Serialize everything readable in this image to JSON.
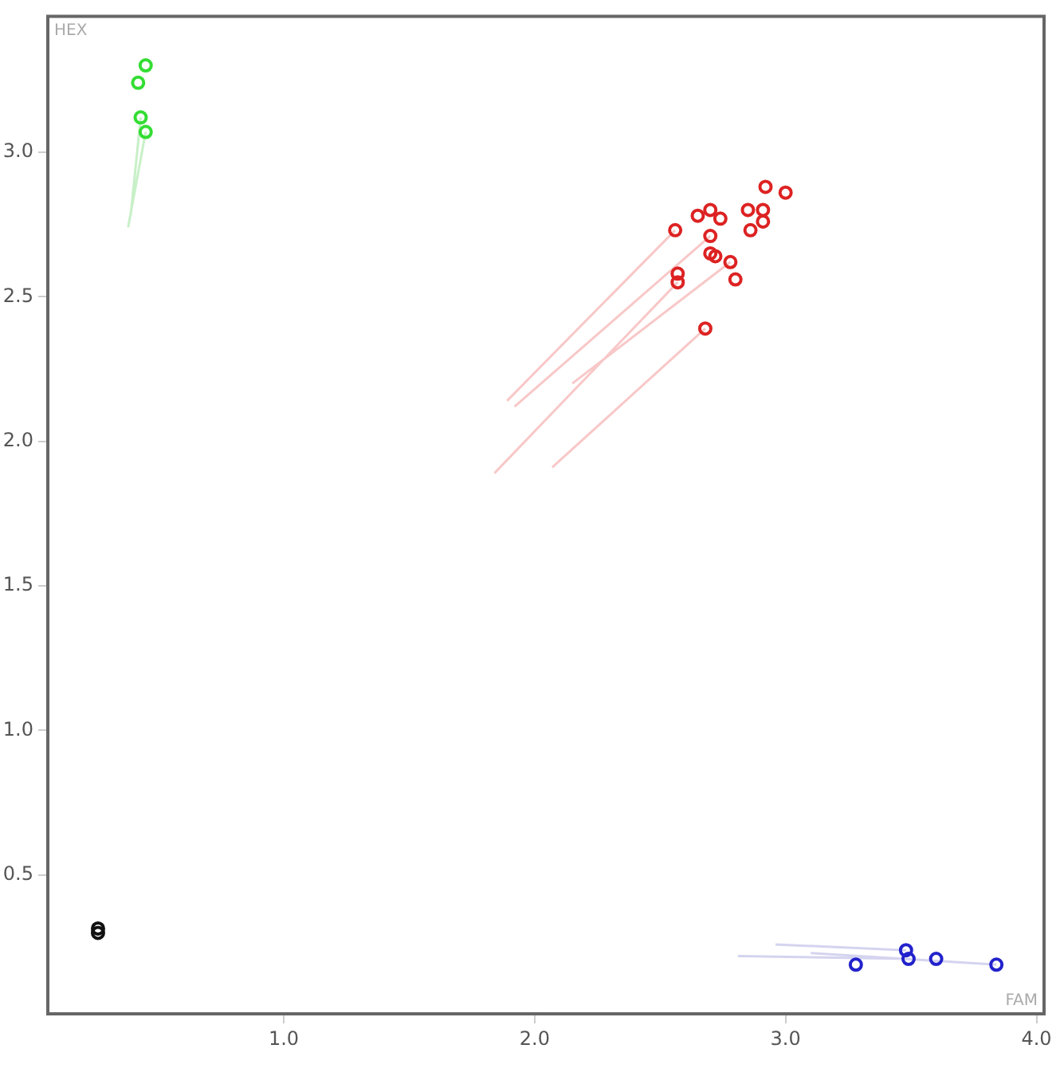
{
  "chart_data": {
    "type": "scatter",
    "xlabel": "FAM",
    "ylabel": "HEX",
    "marker": "circle",
    "grid": false,
    "legend": false,
    "xlim": [
      0.06,
      4.03
    ],
    "ylim": [
      0.02,
      3.47
    ],
    "xticks": [
      {
        "value": 1,
        "label": "1.0"
      },
      {
        "value": 2,
        "label": "2.0"
      },
      {
        "value": 3,
        "label": "3.0"
      },
      {
        "value": 4,
        "label": "4.0"
      }
    ],
    "yticks": [
      {
        "value": 0.5,
        "label": "0.5"
      },
      {
        "value": 1,
        "label": "1.0"
      },
      {
        "value": 1.5,
        "label": "1.5"
      },
      {
        "value": 2,
        "label": "2.0"
      },
      {
        "value": 2.5,
        "label": "2.5"
      },
      {
        "value": 3,
        "label": "3.0"
      }
    ],
    "series": [
      {
        "type": "line",
        "marker": "none",
        "color": "#c8f0c8",
        "x": [
          0.38,
          0.45,
          null,
          0.39,
          0.43
        ],
        "values": [
          2.74,
          3.07,
          null,
          2.78,
          3.12
        ]
      },
      {
        "type": "line",
        "marker": "none",
        "color": "#f8c8c8",
        "x": [
          1.84,
          2.57,
          null,
          1.89,
          2.56,
          null,
          1.92,
          2.7,
          null,
          2.07,
          2.68,
          null,
          2.15,
          2.78
        ],
        "values": [
          1.89,
          2.55,
          null,
          2.14,
          2.73,
          null,
          2.12,
          2.71,
          null,
          1.91,
          2.39,
          null,
          2.2,
          2.62
        ]
      },
      {
        "type": "line",
        "marker": "none",
        "color": "#d4d4f0",
        "x": [
          2.81,
          3.49,
          null,
          2.96,
          3.48,
          null,
          3.1,
          3.84
        ],
        "values": [
          0.22,
          0.21,
          null,
          0.26,
          0.24,
          null,
          0.23,
          0.19
        ]
      },
      {
        "color": "#33dd33",
        "x": [
          0.45,
          0.42,
          0.43,
          0.45
        ],
        "values": [
          3.3,
          3.24,
          3.12,
          3.07
        ]
      },
      {
        "color": "#dd2222",
        "x": [
          2.56,
          2.65,
          2.7,
          2.74,
          2.7,
          2.7,
          2.72,
          2.78,
          2.8,
          2.57,
          2.57,
          2.68,
          2.85,
          2.86,
          2.91,
          2.91,
          2.92,
          3.0
        ],
        "values": [
          2.73,
          2.78,
          2.8,
          2.77,
          2.71,
          2.65,
          2.64,
          2.62,
          2.56,
          2.58,
          2.55,
          2.39,
          2.8,
          2.73,
          2.8,
          2.76,
          2.88,
          2.86
        ]
      },
      {
        "color": "#2222cc",
        "x": [
          3.28,
          3.48,
          3.49,
          3.6,
          3.84
        ],
        "values": [
          0.19,
          0.24,
          0.21,
          0.21,
          0.19
        ]
      },
      {
        "color": "#111111",
        "x": [
          0.26,
          0.26
        ],
        "values": [
          0.315,
          0.3
        ]
      }
    ]
  }
}
